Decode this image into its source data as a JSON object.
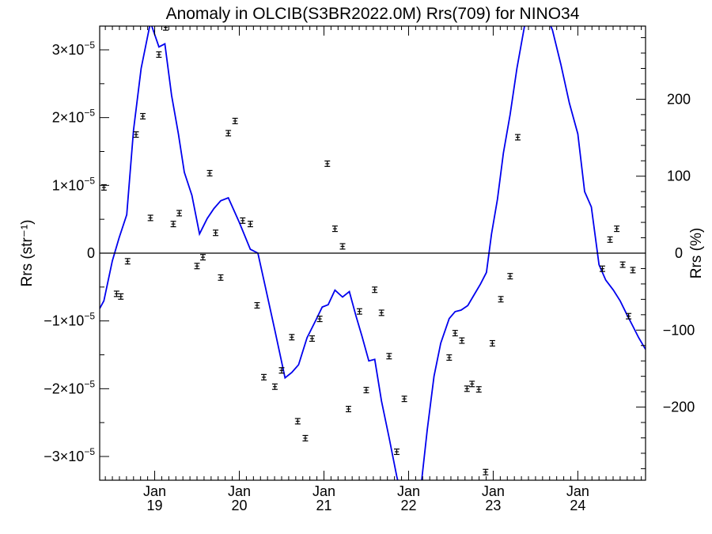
{
  "chart_data": {
    "type": "scatter",
    "title": "Anomaly in OLCIB(S3BR2022.0M) Rrs(709) for NINO34",
    "ylabel_left": "Rrs (str⁻¹)",
    "ylabel_right": "Rrs (%)",
    "x_unit": "months since 2018-01",
    "xlim": [
      17.35,
      23.8
    ],
    "ylim_left": [
      -3.35e-05,
      3.35e-05
    ],
    "ylim_right": [
      -295,
      295
    ],
    "x_ticks": [
      {
        "x": 18,
        "month": "Jan",
        "year": "19"
      },
      {
        "x": 19,
        "month": "Jan",
        "year": "20"
      },
      {
        "x": 20,
        "month": "Jan",
        "year": "21"
      },
      {
        "x": 21,
        "month": "Jan",
        "year": "22"
      },
      {
        "x": 22,
        "month": "Jan",
        "year": "23"
      },
      {
        "x": 23,
        "month": "Jan",
        "year": "24"
      }
    ],
    "y_ticks_left": [
      {
        "value": 3e-05,
        "label": "3×10",
        "exp": "−5"
      },
      {
        "value": 2e-05,
        "label": "2×10",
        "exp": "−5"
      },
      {
        "value": 1e-05,
        "label": "1×10",
        "exp": "−5"
      },
      {
        "value": 0,
        "label": "0",
        "exp": ""
      },
      {
        "value": -1e-05,
        "label": "−1×10",
        "exp": "−5"
      },
      {
        "value": -2e-05,
        "label": "−2×10",
        "exp": "−5"
      },
      {
        "value": -3e-05,
        "label": "−3×10",
        "exp": "−5"
      }
    ],
    "y_ticks_right": [
      {
        "value": 200,
        "label": "200"
      },
      {
        "value": 100,
        "label": "100"
      },
      {
        "value": 0,
        "label": "0"
      },
      {
        "value": -100,
        "label": "−100"
      },
      {
        "value": -200,
        "label": "−200"
      }
    ],
    "zero_line": true,
    "anomaly_points": {
      "x": [
        17.4,
        17.55,
        17.6,
        17.68,
        17.78,
        17.86,
        17.95,
        18.05,
        18.13,
        18.22,
        18.29,
        18.5,
        18.57,
        18.65,
        18.72,
        18.78,
        18.87,
        18.95,
        19.04,
        19.13,
        19.21,
        19.29,
        19.42,
        19.5,
        19.62,
        19.69,
        19.78,
        19.86,
        19.95,
        20.04,
        20.13,
        20.22,
        20.29,
        20.42,
        20.5,
        20.6,
        20.68,
        20.77,
        20.86,
        20.95,
        21.48,
        21.55,
        21.63,
        21.69,
        21.75,
        21.83,
        21.91,
        21.99,
        22.09,
        22.2,
        22.29,
        23.29,
        23.38,
        23.46,
        23.53,
        23.6,
        23.65
      ],
      "y": [
        9.7e-06,
        -6e-06,
        -6.4e-06,
        -1.2e-06,
        1.75e-05,
        2.02e-05,
        5.2e-06,
        2.93e-05,
        3.33e-05,
        4.3e-06,
        5.9e-06,
        -1.9e-06,
        -6e-07,
        1.18e-05,
        3e-06,
        -3.6e-06,
        1.77e-05,
        1.95e-05,
        4.8e-06,
        4.3e-06,
        -7.7e-06,
        -1.83e-05,
        -1.97e-05,
        -1.73e-05,
        -1.24e-05,
        -2.48e-05,
        -2.73e-05,
        -1.26e-05,
        -9.7e-06,
        1.32e-05,
        3.6e-06,
        1e-06,
        -2.3e-05,
        -8.6e-06,
        -2.02e-05,
        -5.4e-06,
        -8.8e-06,
        -1.52e-05,
        -2.93e-05,
        -2.15e-05,
        -1.54e-05,
        -1.18e-05,
        -1.29e-05,
        -2e-05,
        -1.93e-05,
        -2.01e-05,
        -3.23e-05,
        -1.33e-05,
        -6.8e-06,
        -3.4e-06,
        1.71e-05,
        -2.3e-06,
        2e-06,
        3.6e-06,
        -1.7e-06,
        -9.3e-06,
        -2.5e-06
      ],
      "error": 4e-07,
      "color": "#000000"
    },
    "percent_line": {
      "name": "Rrs (%)",
      "color": "#0000ee",
      "x": [
        17.35,
        17.4,
        17.5,
        17.58,
        17.67,
        17.75,
        17.84,
        17.95,
        18.05,
        18.12,
        18.2,
        18.28,
        18.35,
        18.44,
        18.53,
        18.62,
        18.7,
        18.78,
        18.87,
        19.0,
        19.13,
        19.22,
        19.3,
        19.42,
        19.54,
        19.62,
        19.7,
        19.8,
        19.9,
        19.98,
        20.05,
        20.13,
        20.22,
        20.3,
        20.38,
        20.45,
        20.53,
        20.6,
        20.68,
        20.77,
        20.86,
        20.95,
        21.05,
        21.15,
        21.22,
        21.3,
        21.38,
        21.48,
        21.55,
        21.62,
        21.7,
        21.77,
        21.85,
        21.92,
        21.98,
        22.05,
        22.12,
        22.2,
        22.28,
        22.37,
        22.45,
        22.55,
        22.62,
        22.7,
        22.8,
        22.9,
        23.0,
        23.08,
        23.16,
        23.25,
        23.33,
        23.42,
        23.5,
        23.58,
        23.65,
        23.72,
        23.8
      ],
      "y": [
        -72,
        -62,
        -10,
        20,
        50,
        160,
        240,
        300,
        268,
        272,
        205,
        155,
        105,
        75,
        25,
        45,
        58,
        68,
        72,
        40,
        5,
        0,
        -40,
        -100,
        -162,
        -155,
        -145,
        -110,
        -88,
        -70,
        -67,
        -48,
        -57,
        -50,
        -82,
        -108,
        -140,
        -138,
        -192,
        -240,
        -290,
        -330,
        -330,
        -300,
        -230,
        -160,
        -117,
        -85,
        -76,
        -74,
        -68,
        -55,
        -40,
        -25,
        25,
        70,
        130,
        180,
        240,
        295,
        320,
        330,
        310,
        290,
        245,
        195,
        155,
        80,
        60,
        -15,
        -35,
        -48,
        -62,
        -80,
        -95,
        -110,
        -125
      ]
    }
  }
}
